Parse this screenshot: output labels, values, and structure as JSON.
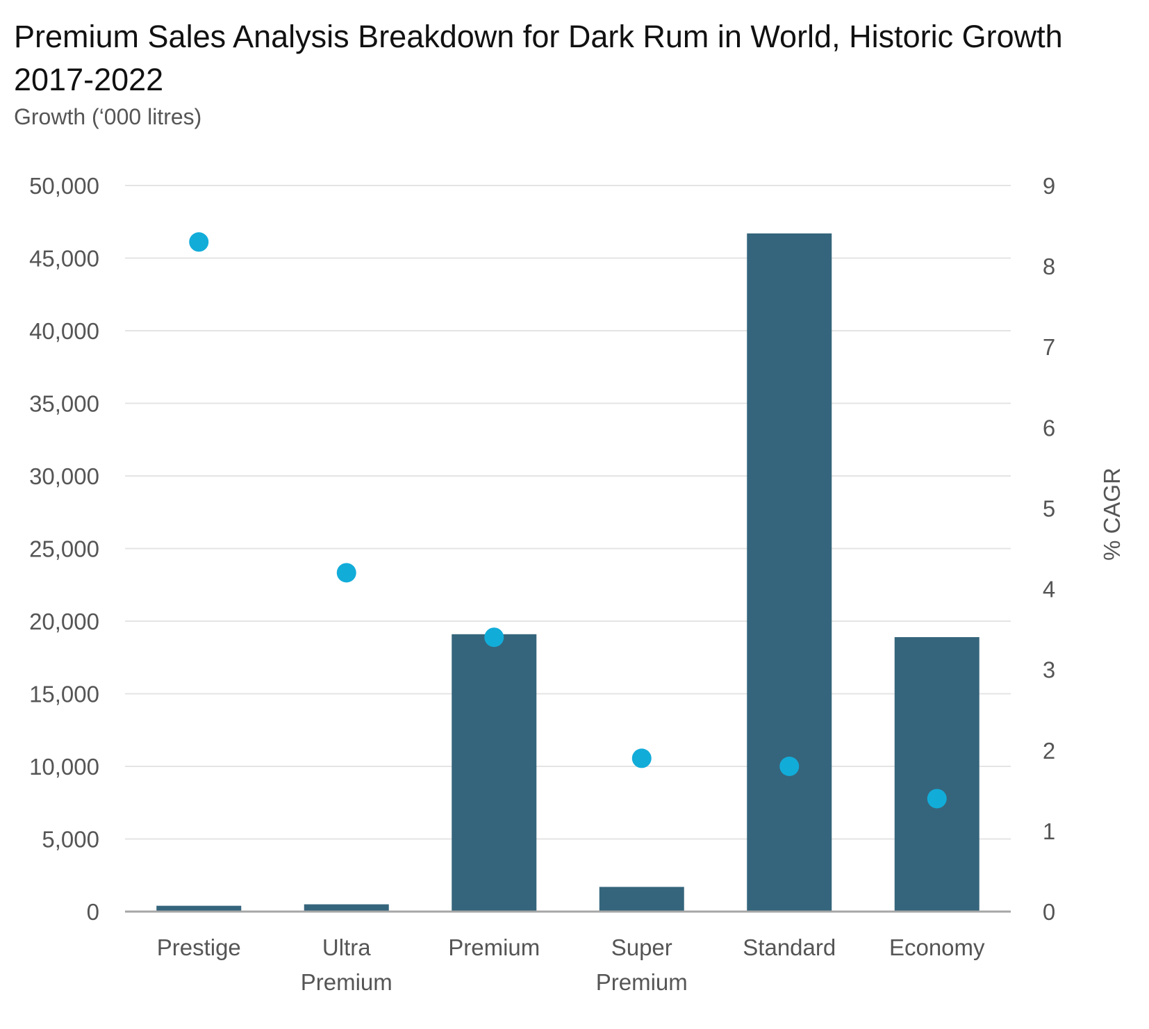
{
  "chart_data": {
    "type": "bar",
    "title": "Premium Sales Analysis Breakdown for Dark Rum in World, Historic Growth 2017-2022",
    "subtitle": "Growth (‘000 litres)",
    "xlabel": "",
    "ylabel": "",
    "y2label": "% CAGR",
    "categories": [
      "Prestige",
      "Ultra Premium",
      "Premium",
      "Super Premium",
      "Standard",
      "Economy"
    ],
    "category_lines": [
      [
        "Prestige"
      ],
      [
        "Ultra",
        "Premium"
      ],
      [
        "Premium"
      ],
      [
        "Super",
        "Premium"
      ],
      [
        "Standard"
      ],
      [
        "Economy"
      ]
    ],
    "ylim": [
      0,
      50000
    ],
    "y_ticks": [
      "0",
      "5,000",
      "10,000",
      "15,000",
      "20,000",
      "25,000",
      "30,000",
      "35,000",
      "40,000",
      "45,000",
      "50,000"
    ],
    "y2lim": [
      0,
      9
    ],
    "y2_ticks": [
      "0",
      "1",
      "2",
      "3",
      "4",
      "5",
      "6",
      "7",
      "8",
      "9"
    ],
    "series": [
      {
        "type": "bar",
        "axis": "left",
        "color": "#35657c",
        "values": [
          400,
          500,
          19100,
          1700,
          46700,
          18900
        ]
      },
      {
        "type": "scatter",
        "axis": "right",
        "color": "#12acd9",
        "values": [
          8.3,
          4.2,
          3.4,
          1.9,
          1.8,
          1.4
        ]
      }
    ],
    "grid": true,
    "gridline_color": "#e4e4e4",
    "axis_line_color": "#a6a6a6"
  }
}
